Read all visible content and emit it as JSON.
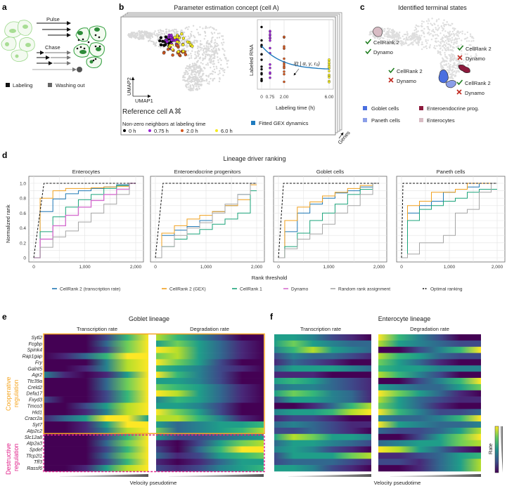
{
  "panel_labels": {
    "a": "a",
    "b": "b",
    "c": "c",
    "d": "d",
    "e": "e",
    "f": "f"
  },
  "a": {
    "pulse": "Pulse",
    "chase": "Chase",
    "legend": [
      {
        "label": "Labeling",
        "color": "#111111"
      },
      {
        "label": "Washing out",
        "color": "#666666"
      }
    ]
  },
  "b": {
    "title": "Parameter estimation concept (cell A)",
    "umap1": "UMAP1",
    "umap2": "UMAP2",
    "reference": "Reference cell A",
    "neighbors_title": "Non-zero neighbors at labeling time",
    "time_legend": [
      {
        "label": "0 h",
        "color": "#000000"
      },
      {
        "label": "0.75 h",
        "color": "#9b1fd6"
      },
      {
        "label": "2.0 h",
        "color": "#d4561c"
      },
      {
        "label": "6.0 h",
        "color": "#f5ec1c"
      }
    ],
    "inset": {
      "ylabel": "Labeled RNA",
      "xlabel": "Labeling time (h)",
      "xticks": [
        "0",
        "0.75",
        "2.00",
        "6.00"
      ],
      "xtick_values": [
        0,
        0.75,
        2,
        6
      ],
      "formula": "l(t | α, γ, r₀)",
      "fit_legend": "Fitted GEX dynamics",
      "fit_color": "#1f7bbf"
    },
    "genes": "Genes"
  },
  "c": {
    "title": "Identified terminal states",
    "annotations": [
      {
        "cellrank": "CellRank 2",
        "dynamo": "Dynamo",
        "cellrank_ok": true,
        "dynamo_ok": true
      },
      {
        "cellrank": "CellRank 2",
        "dynamo": "Dynamo",
        "cellrank_ok": true,
        "dynamo_ok": false
      },
      {
        "cellrank": "CellRank 2",
        "dynamo": "Dynamo",
        "cellrank_ok": true,
        "dynamo_ok": false
      },
      {
        "cellrank": "CellRank 2",
        "dynamo": "Dynamo",
        "cellrank_ok": true,
        "dynamo_ok": false
      }
    ],
    "legend": [
      {
        "label": "Goblet cells",
        "color": "#4a6fe0"
      },
      {
        "label": "Enteroendocrine prog.",
        "color": "#8c1a3c"
      },
      {
        "label": "Paneth cells",
        "color": "#8b9ee8"
      },
      {
        "label": "Enterocytes",
        "color": "#d8bcc4"
      }
    ],
    "check_color": "#1e7d1e",
    "cross_color": "#c0281e"
  },
  "chart_data": {
    "type": "line",
    "title": "Lineage driver ranking",
    "xlabel": "Rank threshold",
    "ylabel": "Normalized rank",
    "xlim": [
      0,
      2000
    ],
    "ylim": [
      0,
      1
    ],
    "grid": true,
    "xticks": [
      0,
      1000,
      2000
    ],
    "xtick_labels": [
      "0",
      "1,000",
      "2,000"
    ],
    "yticks": [
      0,
      0.2,
      0.4,
      0.6,
      0.8,
      1.0
    ],
    "ytick_labels": [
      "0",
      "0.2",
      "0.4",
      "0.6",
      "0.8",
      "1.0"
    ],
    "x": [
      0,
      250,
      500,
      750,
      1000,
      1250,
      1500,
      1750,
      2000
    ],
    "legend_placement": "bottom",
    "legend": [
      {
        "name": "CellRank 2 (transcription rate)",
        "color": "#1f77b4",
        "dash": false
      },
      {
        "name": "CellRank 2 (GEX)",
        "color": "#f0a01e",
        "dash": false
      },
      {
        "name": "CellRank 1",
        "color": "#1aa37a",
        "dash": false
      },
      {
        "name": "Dynamo",
        "color": "#d56fcf",
        "dash": false
      },
      {
        "name": "Random rank assignment",
        "color": "#a5a5a5",
        "dash": false
      },
      {
        "name": "Optimal ranking",
        "color": "#111111",
        "dash": true
      }
    ],
    "panels": [
      {
        "title": "Enterocytes",
        "series": [
          {
            "name": "CellRank 2 (transcription rate)",
            "values": [
              0,
              0.62,
              0.79,
              0.86,
              0.9,
              0.93,
              0.95,
              0.98,
              1.0
            ]
          },
          {
            "name": "CellRank 2 (GEX)",
            "values": [
              0,
              0.8,
              0.9,
              0.93,
              0.93,
              0.94,
              0.95,
              0.96,
              1.0
            ]
          },
          {
            "name": "CellRank 1",
            "values": [
              0,
              0.35,
              0.55,
              0.68,
              0.78,
              0.85,
              0.93,
              0.97,
              1.0
            ]
          },
          {
            "name": "Dynamo",
            "values": [
              0,
              0.25,
              0.43,
              0.57,
              0.68,
              0.77,
              0.85,
              0.92,
              1.0
            ]
          },
          {
            "name": "Random rank assignment",
            "values": [
              0,
              0.14,
              0.28,
              0.36,
              0.48,
              0.6,
              0.72,
              0.85,
              1.0
            ]
          }
        ],
        "optimal": {
          "x": [
            0,
            200,
            2000
          ],
          "y": [
            0,
            1,
            1
          ]
        }
      },
      {
        "title": "Enteroendocrine progenitors",
        "series": [
          {
            "name": "CellRank 2 (transcription rate)",
            "values": [
              0,
              0.3,
              0.37,
              0.42,
              0.5,
              0.62,
              0.7,
              0.85,
              1.0
            ]
          },
          {
            "name": "CellRank 2 (GEX)",
            "values": [
              0,
              0.33,
              0.43,
              0.52,
              0.57,
              0.62,
              0.7,
              0.78,
              0.98
            ]
          },
          {
            "name": "CellRank 1",
            "values": [
              0,
              0.15,
              0.25,
              0.32,
              0.38,
              0.45,
              0.52,
              0.6,
              0.9
            ]
          },
          {
            "name": "Random rank assignment",
            "values": [
              0,
              0.15,
              0.3,
              0.4,
              0.47,
              0.6,
              0.72,
              0.85,
              1.0
            ]
          }
        ],
        "optimal": {
          "x": [
            0,
            150,
            2000
          ],
          "y": [
            0,
            1,
            1
          ]
        }
      },
      {
        "title": "Goblet cells",
        "series": [
          {
            "name": "CellRank 2 (transcription rate)",
            "values": [
              0,
              0.35,
              0.6,
              0.72,
              0.8,
              0.87,
              0.9,
              0.95,
              1.0
            ]
          },
          {
            "name": "CellRank 2 (GEX)",
            "values": [
              0,
              0.5,
              0.68,
              0.75,
              0.83,
              0.88,
              0.93,
              0.97,
              1.0
            ]
          },
          {
            "name": "CellRank 1",
            "values": [
              0,
              0.15,
              0.33,
              0.5,
              0.6,
              0.72,
              0.85,
              0.92,
              1.0
            ]
          },
          {
            "name": "Random rank assignment",
            "values": [
              0,
              0.12,
              0.25,
              0.32,
              0.45,
              0.6,
              0.7,
              0.85,
              1.0
            ]
          }
        ],
        "optimal": {
          "x": [
            0,
            100,
            2000
          ],
          "y": [
            0,
            1,
            1
          ]
        }
      },
      {
        "title": "Paneth cells",
        "series": [
          {
            "name": "CellRank 2 (transcription rate)",
            "values": [
              0,
              0.6,
              0.7,
              0.76,
              0.88,
              0.92,
              0.95,
              1.0,
              1.0
            ]
          },
          {
            "name": "CellRank 2 (GEX)",
            "values": [
              0,
              0.7,
              0.76,
              0.88,
              0.88,
              0.92,
              1.0,
              1.0,
              1.0
            ]
          },
          {
            "name": "CellRank 1",
            "values": [
              0,
              0.5,
              0.65,
              0.7,
              0.76,
              0.8,
              0.88,
              0.92,
              0.92
            ]
          },
          {
            "name": "Random rank assignment",
            "values": [
              0,
              0.05,
              0.2,
              0.2,
              0.3,
              0.6,
              0.65,
              0.88,
              1.0
            ]
          }
        ],
        "optimal": {
          "x": [
            0,
            30,
            2000
          ],
          "y": [
            0,
            1,
            1
          ]
        }
      }
    ]
  },
  "e": {
    "title": "Goblet lineage",
    "col_titles": [
      "Transcription rate",
      "Degradation rate"
    ],
    "group_labels": [
      {
        "line1": "Cooperative",
        "line2": "regulation",
        "color": "#f5a623"
      },
      {
        "line1": "Destructive",
        "line2": "regulation",
        "color": "#e0218a"
      }
    ],
    "genes": [
      "Sytl2",
      "Fcgbp",
      "Spink4",
      "Rap1gap",
      "Fry",
      "Galnt5",
      "Agr2",
      "Ttc39a",
      "Creld2",
      "Defa17",
      "Fxyd3",
      "Tmco3",
      "Hid1",
      "Cracr2a",
      "Syt7",
      "Atp2c2",
      "Slc12a8",
      "Atp2a3",
      "Spdef",
      "Tfcp2l1",
      "Tff3",
      "Rassf6"
    ],
    "cooperative_count": 16,
    "xlabel": "Velocity pseudotime",
    "transcription": [
      [
        0,
        0,
        0.05,
        0.2,
        0.7,
        1
      ],
      [
        0,
        0,
        0.05,
        0.3,
        0.8,
        1
      ],
      [
        0,
        0,
        0,
        0.2,
        0.8,
        1
      ],
      [
        0.05,
        0.1,
        0.3,
        0.7,
        1,
        1
      ],
      [
        0,
        0,
        0.05,
        0.4,
        0.9,
        1
      ],
      [
        0,
        0,
        0.1,
        0.4,
        0.9,
        1
      ],
      [
        0.4,
        0.1,
        0,
        0.1,
        0.6,
        1
      ],
      [
        0,
        0,
        0.05,
        0.3,
        0.8,
        1
      ],
      [
        0,
        0,
        0.05,
        0.3,
        0.8,
        1
      ],
      [
        0,
        0,
        0,
        0.2,
        0.7,
        1
      ],
      [
        0.25,
        0.05,
        0,
        0.2,
        0.7,
        1
      ],
      [
        0,
        0.05,
        0.2,
        0.5,
        0.9,
        1
      ],
      [
        0,
        0.05,
        0.1,
        0.4,
        0.9,
        1
      ],
      [
        0.1,
        0.3,
        0.6,
        0.95,
        1,
        0.6
      ],
      [
        0,
        0.05,
        0.15,
        0.5,
        0.95,
        1
      ],
      [
        0,
        0,
        0.1,
        0.4,
        0.9,
        1
      ],
      [
        0,
        0,
        0.05,
        0.2,
        0.7,
        1
      ],
      [
        0,
        0,
        0.05,
        0.3,
        0.8,
        1
      ],
      [
        0,
        0,
        0,
        0.2,
        0.7,
        1
      ],
      [
        0,
        0,
        0.05,
        0.3,
        0.8,
        1
      ],
      [
        0,
        0,
        0,
        0.2,
        0.7,
        1
      ],
      [
        0,
        0.05,
        0.1,
        0.5,
        0.9,
        1
      ]
    ],
    "degradation": [
      [
        0.9,
        0.7,
        0.4,
        0.2,
        0.05,
        0
      ],
      [
        0.6,
        0.8,
        0.5,
        0.3,
        0.1,
        0
      ],
      [
        1,
        0.9,
        0.6,
        0.3,
        0.1,
        0
      ],
      [
        0.8,
        0.9,
        0.6,
        0.3,
        0.1,
        0
      ],
      [
        1,
        0.8,
        0.5,
        0.2,
        0.05,
        0
      ],
      [
        0.7,
        0.6,
        0.4,
        0.2,
        0.1,
        0
      ],
      [
        1,
        0.7,
        0.4,
        0.2,
        0.05,
        0
      ],
      [
        0.5,
        0.6,
        0.4,
        0.2,
        0.05,
        0
      ],
      [
        0.8,
        0.7,
        0.5,
        0.3,
        0.1,
        0
      ],
      [
        1,
        0.9,
        0.6,
        0.3,
        0.1,
        0
      ],
      [
        0.4,
        0.7,
        0.6,
        0.3,
        0.1,
        0
      ],
      [
        0.6,
        0.6,
        0.4,
        0.2,
        0.05,
        0
      ],
      [
        1,
        0.8,
        0.5,
        0.2,
        0.05,
        0
      ],
      [
        0.9,
        0.9,
        0.7,
        0.4,
        0.1,
        0
      ],
      [
        0.6,
        0.3,
        0.4,
        0.5,
        0.6,
        0.7
      ],
      [
        0.8,
        0.3,
        0.4,
        0.6,
        0.7,
        0.9
      ],
      [
        0.5,
        0.2,
        0.2,
        0.3,
        0.4,
        0.5
      ],
      [
        0.1,
        0.05,
        0.2,
        0.5,
        0.8,
        0.9
      ],
      [
        0.2,
        0.05,
        0.3,
        0.7,
        0.95,
        1
      ],
      [
        0.3,
        0.1,
        0.2,
        0.5,
        0.7,
        0.8
      ],
      [
        0.1,
        0.05,
        0.1,
        0.3,
        0.5,
        0.6
      ],
      [
        0.2,
        0.1,
        0.2,
        0.4,
        0.6,
        0.7
      ]
    ]
  },
  "f": {
    "title": "Enterocyte lineage",
    "col_titles": [
      "Transcription rate",
      "Degradation rate"
    ],
    "xlabel": "Velocity pseudotime",
    "colorbar_label": "Rate",
    "transcription": [
      [
        0.5,
        0.6,
        0.4,
        0.2,
        0.1,
        0
      ],
      [
        0.6,
        0.8,
        0.5,
        0.4,
        0.3,
        0.3
      ],
      [
        0.4,
        0.7,
        0.9,
        0.6,
        0.4,
        0.3
      ],
      [
        0.2,
        0.4,
        0.3,
        0.3,
        0.2,
        0.1
      ],
      [
        0.1,
        0.3,
        0.2,
        0.1,
        0.05,
        0
      ],
      [
        0.3,
        0.6,
        0.5,
        0.5,
        0.4,
        0.3
      ],
      [
        0.1,
        0.1,
        0.1,
        0.05,
        0,
        0
      ],
      [
        0.6,
        0.7,
        0.5,
        0.3,
        0.2,
        0.1
      ],
      [
        0.3,
        0.4,
        0.4,
        0.3,
        0.2,
        0.1
      ],
      [
        0.5,
        0.8,
        0.7,
        0.4,
        0.3,
        0.1
      ],
      [
        0.2,
        0.5,
        0.5,
        0.4,
        0.3,
        0.1
      ],
      [
        0,
        0.05,
        0.1,
        0.3,
        0.7,
        0.9
      ],
      [
        0.4,
        0.5,
        0.6,
        0.7,
        0.9,
        1
      ],
      [
        0.1,
        0.2,
        0.2,
        0.1,
        0.05,
        0
      ],
      [
        0.3,
        0.4,
        0.3,
        0.2,
        0.1,
        0.1
      ],
      [
        0.2,
        0.2,
        0.3,
        0.2,
        0.1,
        0
      ],
      [
        0.6,
        0.9,
        0.8,
        0.5,
        0.5,
        0.4
      ],
      [
        0.3,
        0.5,
        0.5,
        0.4,
        0.3,
        0.2
      ],
      [
        0.4,
        0.6,
        0.4,
        0.2,
        0.1,
        0
      ],
      [
        0.2,
        0.5,
        0.6,
        0.6,
        0.8,
        0.9
      ],
      [
        0.2,
        0.3,
        0.3,
        0.3,
        0.2,
        0.1
      ],
      [
        0.5,
        0.6,
        0.4,
        0.2,
        0.1,
        0.05
      ]
    ],
    "degradation": [
      [
        1,
        0.7,
        0.4,
        0.2,
        0.05,
        0
      ],
      [
        0.9,
        0.6,
        0.4,
        0.3,
        0.2,
        0.2
      ],
      [
        0,
        0.05,
        0.2,
        0.4,
        0.7,
        1
      ],
      [
        0.9,
        0.7,
        0.5,
        0.3,
        0.2,
        0.2
      ],
      [
        0.8,
        0.5,
        0.3,
        0.1,
        0.05,
        0
      ],
      [
        0.7,
        0.6,
        0.5,
        0.4,
        0.4,
        0.4
      ],
      [
        0.9,
        0.7,
        0.4,
        0.2,
        0.05,
        0
      ],
      [
        0,
        0.05,
        0.2,
        0.4,
        0.7,
        1
      ],
      [
        0.5,
        0.4,
        0.3,
        0.3,
        0.5,
        0.8
      ],
      [
        1,
        0.8,
        0.5,
        0.3,
        0.1,
        0
      ],
      [
        0.9,
        0.5,
        0.3,
        0.2,
        0.1,
        0.1
      ],
      [
        0.8,
        0.5,
        0.3,
        0.1,
        0,
        0
      ],
      [
        1,
        0.7,
        0.4,
        0.2,
        0.2,
        0.3
      ],
      [
        0.4,
        0.3,
        0.3,
        0.4,
        0.7,
        1
      ],
      [
        1,
        0.6,
        0.4,
        0.3,
        0.3,
        0.4
      ],
      [
        0.3,
        0.2,
        0.2,
        0.3,
        0.6,
        0.9
      ],
      [
        0,
        0.05,
        0.2,
        0.5,
        0.8,
        1
      ],
      [
        0.3,
        0.4,
        0.5,
        0.6,
        0.8,
        0.9
      ],
      [
        1,
        0.9,
        0.6,
        0.3,
        0.1,
        0
      ],
      [
        0.1,
        0.1,
        0.2,
        0.3,
        0.5,
        0.7
      ],
      [
        0.2,
        0.2,
        0.1,
        0.3,
        0.6,
        0.9
      ],
      [
        0,
        0.05,
        0.1,
        0.3,
        0.6,
        0.9
      ]
    ]
  }
}
